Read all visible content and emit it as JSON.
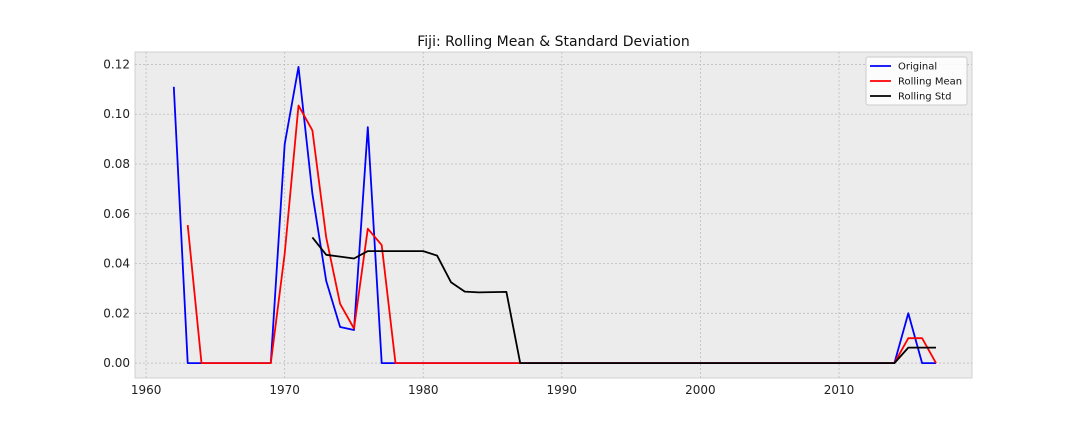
{
  "chart_data": {
    "type": "line",
    "title": "Fiji: Rolling Mean & Standard Deviation",
    "xlabel": "",
    "ylabel": "",
    "xlim": [
      1959.2,
      2019.6
    ],
    "ylim": [
      -0.006,
      0.125
    ],
    "xticks": [
      1960,
      1970,
      1980,
      1990,
      2000,
      2010
    ],
    "yticks": [
      0.0,
      0.02,
      0.04,
      0.06,
      0.08,
      0.1,
      0.12
    ],
    "ytick_labels": [
      "0.00",
      "0.02",
      "0.04",
      "0.06",
      "0.08",
      "0.10",
      "0.12"
    ],
    "grid": true,
    "legend_position": "top-right",
    "series": [
      {
        "name": "Original",
        "color": "#0000ff",
        "x": [
          1962,
          1963,
          1964,
          1965,
          1966,
          1967,
          1968,
          1969,
          1970,
          1971,
          1972,
          1973,
          1974,
          1975,
          1976,
          1977,
          1978,
          1979,
          1980,
          1981,
          1982,
          1983,
          1984,
          1985,
          1986,
          1987,
          1988,
          1989,
          1990,
          1991,
          1992,
          1993,
          1994,
          1995,
          1996,
          1997,
          1998,
          1999,
          2000,
          2001,
          2002,
          2003,
          2004,
          2005,
          2006,
          2007,
          2008,
          2009,
          2010,
          2011,
          2012,
          2013,
          2014,
          2015,
          2016,
          2017
        ],
        "y": [
          0.111,
          0,
          0,
          0,
          0,
          0,
          0,
          0,
          0.088,
          0.119,
          0.068,
          0.033,
          0.0145,
          0.0133,
          0.0948,
          0,
          0,
          0,
          0,
          0,
          0,
          0,
          0,
          0,
          0,
          0,
          0,
          0,
          0,
          0,
          0,
          0,
          0,
          0,
          0,
          0,
          0,
          0,
          0,
          0,
          0,
          0,
          0,
          0,
          0,
          0,
          0,
          0,
          0,
          0,
          0,
          0,
          0,
          0.02,
          0,
          0
        ]
      },
      {
        "name": "Rolling Mean",
        "color": "#ff0000",
        "x": [
          1963,
          1964,
          1965,
          1966,
          1967,
          1968,
          1969,
          1970,
          1971,
          1972,
          1973,
          1974,
          1975,
          1976,
          1977,
          1978,
          1979,
          1980,
          1981,
          1982,
          1983,
          1984,
          1985,
          1986,
          1987,
          1988,
          1989,
          1990,
          1991,
          1992,
          1993,
          1994,
          1995,
          1996,
          1997,
          1998,
          1999,
          2000,
          2001,
          2002,
          2003,
          2004,
          2005,
          2006,
          2007,
          2008,
          2009,
          2010,
          2011,
          2012,
          2013,
          2014,
          2015,
          2016,
          2017
        ],
        "y": [
          0.0555,
          0,
          0,
          0,
          0,
          0,
          0,
          0.044,
          0.1035,
          0.0935,
          0.0505,
          0.0238,
          0.0139,
          0.054,
          0.0474,
          0,
          0,
          0,
          0,
          0,
          0,
          0,
          0,
          0,
          0,
          0,
          0,
          0,
          0,
          0,
          0,
          0,
          0,
          0,
          0,
          0,
          0,
          0,
          0,
          0,
          0,
          0,
          0,
          0,
          0,
          0,
          0,
          0,
          0,
          0,
          0,
          0,
          0.01,
          0.01,
          0
        ]
      },
      {
        "name": "Rolling Std",
        "color": "#000000",
        "x": [
          1972,
          1973,
          1974,
          1975,
          1976,
          1977,
          1978,
          1979,
          1980,
          1981,
          1982,
          1983,
          1984,
          1985,
          1986,
          1987,
          1988,
          1989,
          1990,
          1991,
          1992,
          1993,
          1994,
          1995,
          1996,
          1997,
          1998,
          1999,
          2000,
          2001,
          2002,
          2003,
          2004,
          2005,
          2006,
          2007,
          2008,
          2009,
          2010,
          2011,
          2012,
          2013,
          2014,
          2015,
          2016,
          2017
        ],
        "y": [
          0.0505,
          0.0435,
          0.0428,
          0.042,
          0.045,
          0.045,
          0.045,
          0.045,
          0.045,
          0.0432,
          0.0325,
          0.0287,
          0.0284,
          0.0285,
          0.0286,
          0,
          0,
          0,
          0,
          0,
          0,
          0,
          0,
          0,
          0,
          0,
          0,
          0,
          0,
          0,
          0,
          0,
          0,
          0,
          0,
          0,
          0,
          0,
          0,
          0,
          0,
          0,
          0,
          0.0062,
          0.0062,
          0.0062
        ]
      }
    ]
  }
}
